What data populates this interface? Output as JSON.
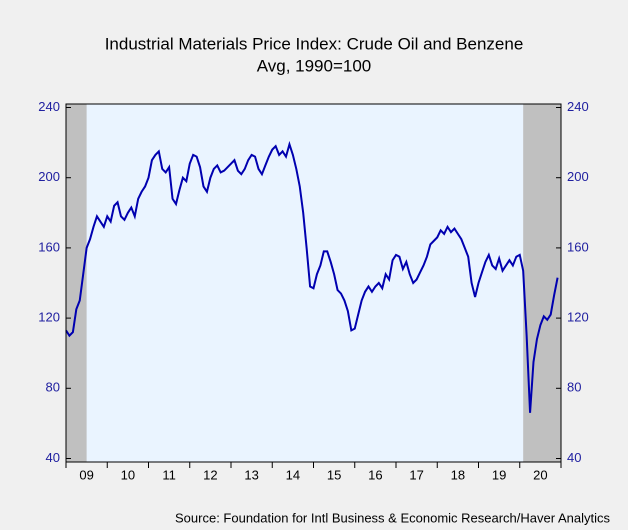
{
  "chart_data": {
    "type": "line",
    "title": "Industrial Materials Price Index: Crude Oil and Benzene",
    "subtitle": "Avg, 1990=100",
    "source": "Source:  Foundation for Intl Business & Economic Research/Haver Analytics",
    "x": [
      2009,
      2009.083,
      2009.167,
      2009.25,
      2009.333,
      2009.417,
      2009.5,
      2009.583,
      2009.667,
      2009.75,
      2009.833,
      2009.917,
      2010,
      2010.083,
      2010.167,
      2010.25,
      2010.333,
      2010.417,
      2010.5,
      2010.583,
      2010.667,
      2010.75,
      2010.833,
      2010.917,
      2011,
      2011.083,
      2011.167,
      2011.25,
      2011.333,
      2011.417,
      2011.5,
      2011.583,
      2011.667,
      2011.75,
      2011.833,
      2011.917,
      2012,
      2012.083,
      2012.167,
      2012.25,
      2012.333,
      2012.417,
      2012.5,
      2012.583,
      2012.667,
      2012.75,
      2012.833,
      2012.917,
      2013,
      2013.083,
      2013.167,
      2013.25,
      2013.333,
      2013.417,
      2013.5,
      2013.583,
      2013.667,
      2013.75,
      2013.833,
      2013.917,
      2014,
      2014.083,
      2014.167,
      2014.25,
      2014.333,
      2014.417,
      2014.5,
      2014.583,
      2014.667,
      2014.75,
      2014.833,
      2014.917,
      2015,
      2015.083,
      2015.167,
      2015.25,
      2015.333,
      2015.417,
      2015.5,
      2015.583,
      2015.667,
      2015.75,
      2015.833,
      2015.917,
      2016,
      2016.083,
      2016.167,
      2016.25,
      2016.333,
      2016.417,
      2016.5,
      2016.583,
      2016.667,
      2016.75,
      2016.833,
      2016.917,
      2017,
      2017.083,
      2017.167,
      2017.25,
      2017.333,
      2017.417,
      2017.5,
      2017.583,
      2017.667,
      2017.75,
      2017.833,
      2017.917,
      2018,
      2018.083,
      2018.167,
      2018.25,
      2018.333,
      2018.417,
      2018.5,
      2018.583,
      2018.667,
      2018.75,
      2018.833,
      2018.917,
      2019,
      2019.083,
      2019.167,
      2019.25,
      2019.333,
      2019.417,
      2019.5,
      2019.583,
      2019.667,
      2019.75,
      2019.833,
      2019.917,
      2020,
      2020.083,
      2020.167,
      2020.25,
      2020.333,
      2020.417,
      2020.5,
      2020.583,
      2020.667,
      2020.75,
      2020.833,
      2020.917
    ],
    "series": [
      {
        "color": "#0000b0",
        "values": [
          113,
          110,
          112,
          125,
          130,
          145,
          160,
          165,
          172,
          178,
          175,
          172,
          178,
          175,
          184,
          186,
          178,
          176,
          180,
          183,
          178,
          188,
          192,
          195,
          200,
          210,
          213,
          215,
          205,
          203,
          206,
          188,
          185,
          193,
          200,
          198,
          208,
          213,
          212,
          206,
          195,
          192,
          200,
          205,
          207,
          203,
          204,
          206,
          208,
          210,
          204,
          202,
          205,
          210,
          213,
          212,
          205,
          202,
          207,
          212,
          216,
          218,
          213,
          215,
          212,
          219,
          213,
          205,
          195,
          180,
          160,
          138,
          137,
          145,
          150,
          158,
          158,
          152,
          145,
          136,
          134,
          130,
          124,
          113,
          114,
          122,
          130,
          135,
          138,
          135,
          138,
          140,
          137,
          145,
          142,
          153,
          156,
          155,
          148,
          152,
          145,
          140,
          142,
          146,
          150,
          155,
          162,
          164,
          166,
          170,
          168,
          172,
          169,
          171,
          168,
          165,
          160,
          155,
          140,
          132,
          140,
          146,
          152,
          156,
          150,
          148,
          154,
          147,
          150,
          153,
          150,
          155,
          156,
          147,
          110,
          66,
          95,
          108,
          116,
          121,
          119,
          122,
          133,
          143
        ]
      }
    ],
    "xlim": [
      2009,
      2021
    ],
    "year_ticks": [
      2009,
      2010,
      2011,
      2012,
      2013,
      2014,
      2015,
      2016,
      2017,
      2018,
      2019,
      2020,
      2021
    ],
    "xticks": [
      {
        "value": 2009.5,
        "label": "09"
      },
      {
        "value": 2010.5,
        "label": "10"
      },
      {
        "value": 2011.5,
        "label": "11"
      },
      {
        "value": 2012.5,
        "label": "12"
      },
      {
        "value": 2013.5,
        "label": "13"
      },
      {
        "value": 2014.5,
        "label": "14"
      },
      {
        "value": 2015.5,
        "label": "15"
      },
      {
        "value": 2016.5,
        "label": "16"
      },
      {
        "value": 2017.5,
        "label": "17"
      },
      {
        "value": 2018.5,
        "label": "18"
      },
      {
        "value": 2019.5,
        "label": "19"
      },
      {
        "value": 2020.5,
        "label": "20"
      }
    ],
    "ylim": [
      38,
      242
    ],
    "yticks": [
      40,
      80,
      120,
      160,
      200,
      240
    ],
    "y2lim": [
      38,
      242
    ],
    "y2ticks": [
      40,
      80,
      120,
      160,
      200,
      240
    ],
    "shaded_periods": [
      [
        2009,
        2009.5
      ],
      [
        2020.083,
        2021
      ]
    ],
    "shade_color": "#c0c0c0",
    "plot_background": "#eaf4ff"
  }
}
